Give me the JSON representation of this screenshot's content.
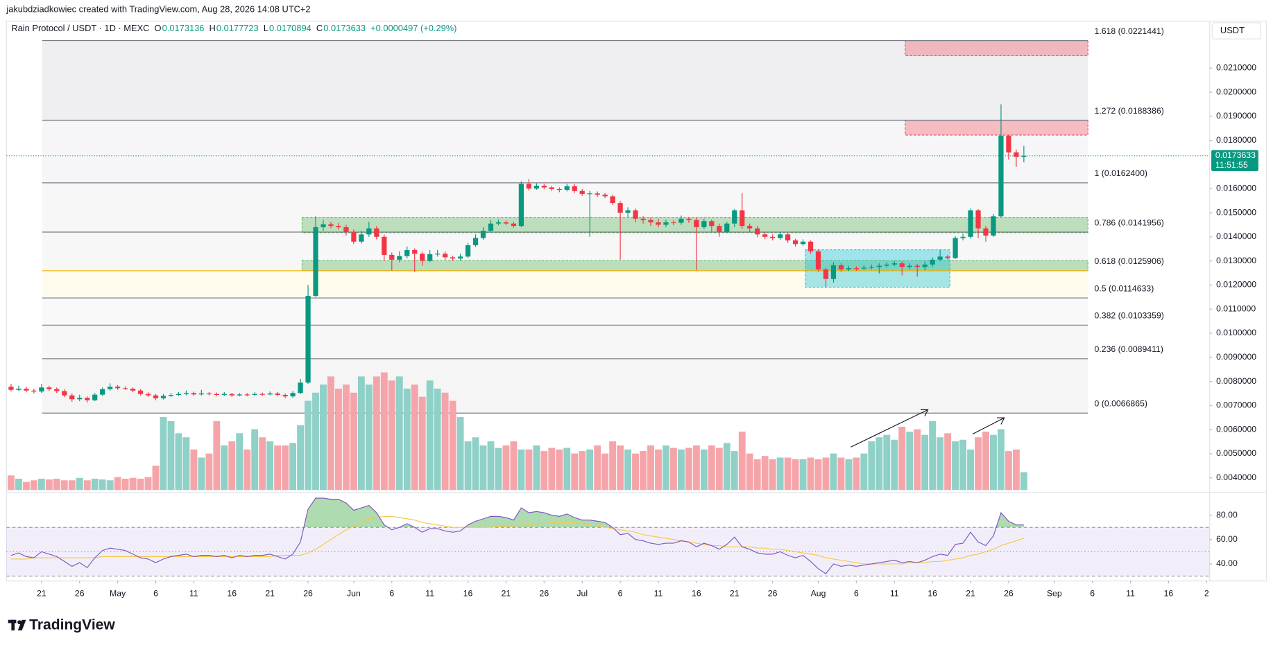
{
  "chart_data": {
    "type": "candlestick",
    "header": "jakubdziadkowiec created with TradingView.com, Aug 28, 2026 14:08 UTC+2",
    "symbol": "Rain Protocol / USDT · 1D · MEXC",
    "ohlc_labels": [
      "O",
      "H",
      "L",
      "C"
    ],
    "ohlc_values": [
      0.0173136,
      0.0177723,
      0.0170894,
      0.0173633
    ],
    "change": "+0.0000497 (+0.29%)",
    "currency": "USDT",
    "logo": "TradingView",
    "up_color": "#089981",
    "down_color": "#f23645",
    "xlim": [
      -0.6,
      157.4
    ],
    "xticks": [
      {
        "value": 4,
        "label": "21"
      },
      {
        "value": 9,
        "label": "26"
      },
      {
        "value": 14,
        "label": "May"
      },
      {
        "value": 19,
        "label": "6"
      },
      {
        "value": 24,
        "label": "11"
      },
      {
        "value": 29,
        "label": "16"
      },
      {
        "value": 34,
        "label": "21"
      },
      {
        "value": 39,
        "label": "26"
      },
      {
        "value": 45,
        "label": "Jun"
      },
      {
        "value": 50,
        "label": "6"
      },
      {
        "value": 55,
        "label": "11"
      },
      {
        "value": 60,
        "label": "16"
      },
      {
        "value": 65,
        "label": "21"
      },
      {
        "value": 70,
        "label": "26"
      },
      {
        "value": 75,
        "label": "Jul"
      },
      {
        "value": 80,
        "label": "6"
      },
      {
        "value": 85,
        "label": "11"
      },
      {
        "value": 90,
        "label": "16"
      },
      {
        "value": 95,
        "label": "21"
      },
      {
        "value": 100,
        "label": "26"
      },
      {
        "value": 106,
        "label": "Aug"
      },
      {
        "value": 111,
        "label": "6"
      },
      {
        "value": 116,
        "label": "11"
      },
      {
        "value": 121,
        "label": "16"
      },
      {
        "value": 126,
        "label": "21"
      },
      {
        "value": 131,
        "label": "26"
      },
      {
        "value": 137,
        "label": "Sep"
      },
      {
        "value": 142,
        "label": "6"
      },
      {
        "value": 147,
        "label": "11"
      },
      {
        "value": 152,
        "label": "16"
      },
      {
        "value": 157,
        "label": "2"
      }
    ],
    "ylim": [
      0.00346,
      0.02295
    ],
    "yticks": [
      {
        "value": 0.004,
        "label": "0.0040000"
      },
      {
        "value": 0.005,
        "label": "0.0050000"
      },
      {
        "value": 0.006,
        "label": "0.0060000"
      },
      {
        "value": 0.007,
        "label": "0.0070000"
      },
      {
        "value": 0.008,
        "label": "0.0080000"
      },
      {
        "value": 0.009,
        "label": "0.0090000"
      },
      {
        "value": 0.01,
        "label": "0.0100000"
      },
      {
        "value": 0.011,
        "label": "0.0110000"
      },
      {
        "value": 0.012,
        "label": "0.0120000"
      },
      {
        "value": 0.013,
        "label": "0.0130000"
      },
      {
        "value": 0.014,
        "label": "0.0140000"
      },
      {
        "value": 0.015,
        "label": "0.0150000"
      },
      {
        "value": 0.016,
        "label": "0.0160000"
      },
      {
        "value": 0.018,
        "label": "0.0180000"
      },
      {
        "value": 0.019,
        "label": "0.0190000"
      },
      {
        "value": 0.02,
        "label": "0.0200000"
      },
      {
        "value": 0.021,
        "label": "0.0210000"
      }
    ],
    "open": [
      0.00778,
      0.00765,
      0.0077,
      0.00762,
      0.00758,
      0.00775,
      0.00768,
      0.0076,
      0.00742,
      0.00726,
      0.00732,
      0.00722,
      0.00745,
      0.00768,
      0.00778,
      0.00772,
      0.0077,
      0.00762,
      0.00748,
      0.00742,
      0.0073,
      0.0074,
      0.00744,
      0.00748,
      0.00752,
      0.00746,
      0.0075,
      0.00748,
      0.00744,
      0.00748,
      0.00742,
      0.00746,
      0.00744,
      0.00748,
      0.00746,
      0.0075,
      0.00744,
      0.00738,
      0.00752,
      0.00795,
      0.01155,
      0.0144,
      0.01452,
      0.01445,
      0.0144,
      0.0142,
      0.0138,
      0.0141,
      0.01435,
      0.014,
      0.01325,
      0.01305,
      0.0132,
      0.01345,
      0.0133,
      0.013,
      0.01328,
      0.0133,
      0.01315,
      0.0131,
      0.01318,
      0.01365,
      0.01395,
      0.01425,
      0.01455,
      0.0146,
      0.01455,
      0.01445,
      0.0162,
      0.016,
      0.01612,
      0.01605,
      0.01598,
      0.01595,
      0.0161,
      0.0159,
      0.01578,
      0.0158,
      0.01575,
      0.01568,
      0.0154,
      0.015,
      0.0151,
      0.01475,
      0.0147,
      0.0146,
      0.0145,
      0.0146,
      0.01458,
      0.01475,
      0.0147,
      0.0144,
      0.01465,
      0.01445,
      0.0142,
      0.01455,
      0.0151,
      0.01445,
      0.01435,
      0.0141,
      0.014,
      0.01395,
      0.0141,
      0.01385,
      0.0137,
      0.0138,
      0.0134,
      0.01265,
      0.01225,
      0.01282,
      0.01265,
      0.0127,
      0.01268,
      0.01272,
      0.01275,
      0.0128,
      0.01285,
      0.0129,
      0.01275,
      0.0128,
      0.01275,
      0.01285,
      0.01305,
      0.01318,
      0.01312,
      0.01395,
      0.014,
      0.0151,
      0.01435,
      0.01405,
      0.01485,
      0.0182,
      0.0175,
      0.0173136
    ],
    "high": [
      0.0079,
      0.00782,
      0.00778,
      0.0077,
      0.0079,
      0.00782,
      0.00775,
      0.00768,
      0.0075,
      0.00745,
      0.00738,
      0.00752,
      0.00775,
      0.00792,
      0.00785,
      0.0078,
      0.00775,
      0.00768,
      0.00755,
      0.00748,
      0.00748,
      0.00752,
      0.00756,
      0.00762,
      0.00758,
      0.00765,
      0.00756,
      0.00754,
      0.00756,
      0.00752,
      0.00752,
      0.00752,
      0.00755,
      0.00754,
      0.00758,
      0.00756,
      0.0075,
      0.0076,
      0.0081,
      0.012,
      0.01485,
      0.0147,
      0.01462,
      0.01458,
      0.0145,
      0.0143,
      0.01425,
      0.01462,
      0.01445,
      0.0141,
      0.01335,
      0.0134,
      0.0136,
      0.01352,
      0.01338,
      0.01345,
      0.01345,
      0.0134,
      0.01322,
      0.0133,
      0.01375,
      0.0141,
      0.0144,
      0.0147,
      0.01472,
      0.01468,
      0.01462,
      0.0163,
      0.0164,
      0.01622,
      0.0162,
      0.01612,
      0.01605,
      0.0162,
      0.01618,
      0.01598,
      0.0159,
      0.01588,
      0.01582,
      0.01575,
      0.01548,
      0.01522,
      0.01518,
      0.01485,
      0.0148,
      0.01475,
      0.01472,
      0.0147,
      0.01488,
      0.01482,
      0.01478,
      0.01475,
      0.01472,
      0.01455,
      0.01462,
      0.01515,
      0.01582,
      0.01455,
      0.01445,
      0.01418,
      0.0141,
      0.0142,
      0.01415,
      0.01392,
      0.0139,
      0.01385,
      0.01348,
      0.01272,
      0.01295,
      0.0129,
      0.0128,
      0.01278,
      0.01282,
      0.01285,
      0.0129,
      0.01295,
      0.013,
      0.01298,
      0.0129,
      0.01288,
      0.01298,
      0.01315,
      0.01345,
      0.01325,
      0.01402,
      0.01412,
      0.01518,
      0.01515,
      0.01445,
      0.01495,
      0.0195,
      0.01822,
      0.01762,
      0.0177723
    ],
    "low": [
      0.00758,
      0.0076,
      0.00755,
      0.0075,
      0.00752,
      0.0076,
      0.00752,
      0.00735,
      0.00715,
      0.00718,
      0.00712,
      0.00718,
      0.0074,
      0.00762,
      0.00765,
      0.00765,
      0.00755,
      0.00742,
      0.00735,
      0.00722,
      0.00725,
      0.00735,
      0.0074,
      0.00742,
      0.0074,
      0.00742,
      0.00742,
      0.00738,
      0.0074,
      0.00736,
      0.00738,
      0.00738,
      0.0074,
      0.0074,
      0.00742,
      0.00738,
      0.0073,
      0.00732,
      0.00748,
      0.0079,
      0.0115,
      0.01425,
      0.01435,
      0.0143,
      0.01405,
      0.0137,
      0.01372,
      0.014,
      0.0139,
      0.013,
      0.0126,
      0.01295,
      0.0131,
      0.01255,
      0.0128,
      0.01295,
      0.01318,
      0.01305,
      0.013,
      0.01302,
      0.01312,
      0.01358,
      0.01388,
      0.01418,
      0.01448,
      0.01448,
      0.01438,
      0.0144,
      0.01592,
      0.01595,
      0.01598,
      0.0159,
      0.01585,
      0.01588,
      0.01582,
      0.0157,
      0.014,
      0.01565,
      0.0156,
      0.01532,
      0.01305,
      0.0148,
      0.0146,
      0.01455,
      0.01445,
      0.0144,
      0.0144,
      0.01448,
      0.0145,
      0.01458,
      0.01262,
      0.01432,
      0.0142,
      0.014,
      0.01415,
      0.0144,
      0.01432,
      0.0142,
      0.01398,
      0.0139,
      0.01385,
      0.01388,
      0.01375,
      0.0136,
      0.01362,
      0.0133,
      0.01255,
      0.0119,
      0.0121,
      0.01255,
      0.01258,
      0.0126,
      0.01262,
      0.01265,
      0.01248,
      0.01272,
      0.01278,
      0.0124,
      0.01265,
      0.01235,
      0.01262,
      0.01275,
      0.01298,
      0.01305,
      0.01308,
      0.01385,
      0.01392,
      0.01395,
      0.0138,
      0.014,
      0.0148,
      0.0172,
      0.0169,
      0.0170894
    ],
    "close": [
      0.00765,
      0.0077,
      0.00762,
      0.00758,
      0.00775,
      0.00768,
      0.0076,
      0.00742,
      0.00726,
      0.00732,
      0.00722,
      0.00745,
      0.00768,
      0.00778,
      0.00772,
      0.0077,
      0.00762,
      0.00748,
      0.00742,
      0.0073,
      0.0074,
      0.00744,
      0.00748,
      0.00752,
      0.00746,
      0.0075,
      0.00748,
      0.00744,
      0.00748,
      0.00742,
      0.00746,
      0.00744,
      0.00748,
      0.00746,
      0.0075,
      0.00744,
      0.00738,
      0.00752,
      0.00795,
      0.01155,
      0.0144,
      0.01452,
      0.01445,
      0.0144,
      0.0142,
      0.0138,
      0.0141,
      0.01435,
      0.014,
      0.01325,
      0.01305,
      0.0132,
      0.01345,
      0.0133,
      0.013,
      0.01328,
      0.0133,
      0.01315,
      0.0131,
      0.01318,
      0.01365,
      0.01395,
      0.01425,
      0.01455,
      0.0146,
      0.01455,
      0.01445,
      0.0162,
      0.016,
      0.01612,
      0.01605,
      0.01598,
      0.01595,
      0.0161,
      0.0159,
      0.01578,
      0.0158,
      0.01575,
      0.01568,
      0.0154,
      0.015,
      0.0151,
      0.01475,
      0.0147,
      0.0146,
      0.0145,
      0.0146,
      0.01458,
      0.01475,
      0.0147,
      0.0144,
      0.01465,
      0.01445,
      0.0142,
      0.01455,
      0.0151,
      0.01445,
      0.01435,
      0.0141,
      0.014,
      0.01395,
      0.0141,
      0.01385,
      0.0137,
      0.0138,
      0.0134,
      0.01265,
      0.01225,
      0.01282,
      0.01265,
      0.0127,
      0.01268,
      0.01272,
      0.01275,
      0.0128,
      0.01285,
      0.0129,
      0.01275,
      0.0128,
      0.01275,
      0.01285,
      0.01305,
      0.01318,
      0.01312,
      0.01395,
      0.014,
      0.0151,
      0.01435,
      0.01405,
      0.01485,
      0.0182,
      0.0175,
      0.0173136,
      0.0173633
    ],
    "last_price": 0.0173633,
    "countdown": "11:51:55",
    "fib_levels": [
      {
        "value": 0.0221441,
        "label": "1.618 (0.0221441)",
        "color": "#787b86",
        "fill": "#efeff2"
      },
      {
        "value": 0.0188386,
        "label": "1.272 (0.0188386)",
        "color": "#787b86",
        "fill": "#f6f6f8"
      },
      {
        "value": 0.01624,
        "label": "1 (0.0162400)",
        "color": "#787b86",
        "fill": "#f7f7f8"
      },
      {
        "value": 0.0141956,
        "label": "0.786 (0.0141956)",
        "color": "#787b86",
        "fill": "#f7f7f8"
      },
      {
        "value": 0.0125906,
        "label": "0.618 (0.0125906)",
        "color": "#f5b400",
        "fill": "#fffbec"
      },
      {
        "value": 0.0114633,
        "label": "0.5 (0.0114633)",
        "color": "#787b86",
        "fill": "#f9f9fa"
      },
      {
        "value": 0.0103359,
        "label": "0.382 (0.0103359)",
        "color": "#787b86",
        "fill": "#f7f7f8"
      },
      {
        "value": 0.0089411,
        "label": "0.236 (0.0089411)",
        "color": "#787b86",
        "fill": "#f5f5f6"
      },
      {
        "value": 0.0066865,
        "label": "0 (0.0066865)",
        "color": "#787b86"
      }
    ],
    "zones": [
      {
        "low": 0.02151,
        "high": 0.02214,
        "fill": "rgba(242,54,69,0.3)",
        "stroke": "#f23645"
      },
      {
        "low": 0.01822,
        "high": 0.01884,
        "fill": "rgba(242,54,69,0.3)",
        "stroke": "#f23645"
      },
      {
        "low": 0.01417,
        "high": 0.01481,
        "fill": "rgba(76,175,80,0.35)",
        "stroke": "#4caf50"
      },
      {
        "low": 0.01259,
        "high": 0.01302,
        "fill": "rgba(76,175,80,0.35)",
        "stroke": "#4caf50"
      },
      {
        "low": 0.01191,
        "high": 0.01346,
        "fill": "rgba(0,188,212,0.35)",
        "stroke": "#00bcd4"
      }
    ],
    "volume": {
      "up_color": "#8fd0c7",
      "down_color": "#f5a5a9",
      "values": [
        18,
        14,
        10,
        12,
        14,
        13,
        14,
        12,
        12,
        15,
        12,
        14,
        13,
        12,
        16,
        14,
        15,
        14,
        16,
        30,
        90,
        85,
        70,
        65,
        50,
        40,
        45,
        85,
        55,
        60,
        70,
        50,
        75,
        65,
        60,
        55,
        55,
        58,
        80,
        110,
        120,
        130,
        140,
        125,
        130,
        120,
        140,
        130,
        140,
        145,
        135,
        140,
        125,
        130,
        115,
        135,
        125,
        120,
        110,
        90,
        60,
        65,
        55,
        60,
        52,
        55,
        60,
        50,
        50,
        55,
        48,
        52,
        50,
        52,
        45,
        48,
        50,
        55,
        45,
        60,
        55,
        50,
        45,
        48,
        55,
        50,
        55,
        52,
        50,
        52,
        55,
        50,
        55,
        52,
        58,
        48,
        72,
        45,
        38,
        42,
        38,
        40,
        40,
        38,
        38,
        40,
        38,
        40,
        45,
        40,
        38,
        40,
        45,
        60,
        65,
        68,
        62,
        78,
        72,
        75,
        68,
        85,
        65,
        70,
        60,
        62,
        50,
        65,
        72,
        68,
        75,
        48,
        50,
        22
      ]
    },
    "rsi": {
      "ylim": [
        28.7,
        95.3
      ],
      "yticks": [
        {
          "value": 80,
          "label": "80.00"
        },
        {
          "value": 60,
          "label": "60.00"
        },
        {
          "value": 40,
          "label": "40.00"
        }
      ],
      "levels": [
        70,
        50,
        30
      ],
      "color": "#7e57c2",
      "ma_color": "#f7c948",
      "band_color": "rgba(126,87,194,0.1)",
      "overbought_fill": "rgba(76,175,80,0.45)",
      "values": [
        47,
        49,
        46,
        45,
        50,
        48,
        46,
        42,
        38,
        41,
        37,
        45,
        51,
        53,
        52,
        51,
        48,
        45,
        44,
        41,
        44,
        46,
        47,
        48,
        46,
        47,
        47,
        46,
        47,
        45,
        47,
        46,
        47,
        47,
        48,
        46,
        44,
        48,
        58,
        85,
        94,
        94,
        93,
        93,
        90,
        84,
        86,
        88,
        82,
        72,
        68,
        70,
        73,
        70,
        66,
        69,
        69,
        67,
        66,
        67,
        72,
        75,
        77,
        79,
        79,
        78,
        76,
        86,
        82,
        83,
        82,
        80,
        79,
        81,
        78,
        76,
        76,
        75,
        74,
        70,
        64,
        65,
        60,
        59,
        57,
        56,
        57,
        57,
        59,
        58,
        54,
        57,
        55,
        52,
        56,
        62,
        54,
        52,
        49,
        48,
        48,
        50,
        47,
        45,
        47,
        42,
        36,
        32,
        40,
        38,
        39,
        38,
        39,
        40,
        41,
        42,
        43,
        41,
        42,
        41,
        43,
        46,
        48,
        47,
        56,
        57,
        66,
        58,
        55,
        63,
        82,
        75,
        72,
        72
      ],
      "ma": [
        44,
        44,
        44,
        45,
        45,
        45,
        45,
        45,
        45,
        45,
        45,
        45,
        46,
        46,
        46,
        46,
        46,
        46,
        46,
        46,
        46,
        46,
        46,
        46,
        46,
        46,
        46,
        46,
        46,
        46,
        46,
        46,
        46,
        46,
        46,
        47,
        47,
        47,
        47,
        49,
        52,
        56,
        60,
        64,
        68,
        71,
        74,
        77,
        78,
        79,
        79,
        78,
        77,
        76,
        74,
        73,
        72,
        71,
        70,
        70,
        70,
        70,
        70,
        70,
        71,
        71,
        71,
        72,
        72,
        73,
        73,
        74,
        74,
        74,
        74,
        73,
        72,
        71,
        70,
        69,
        68,
        67,
        66,
        64,
        63,
        62,
        61,
        60,
        59,
        58,
        57,
        56,
        55,
        55,
        54,
        54,
        54,
        54,
        53,
        53,
        52,
        52,
        51,
        50,
        49,
        48,
        47,
        45,
        44,
        43,
        42,
        41,
        40,
        40,
        40,
        40,
        40,
        40,
        41,
        41,
        41,
        42,
        42,
        43,
        44,
        45,
        47,
        48,
        50,
        52,
        55,
        57,
        59,
        61
      ]
    }
  }
}
